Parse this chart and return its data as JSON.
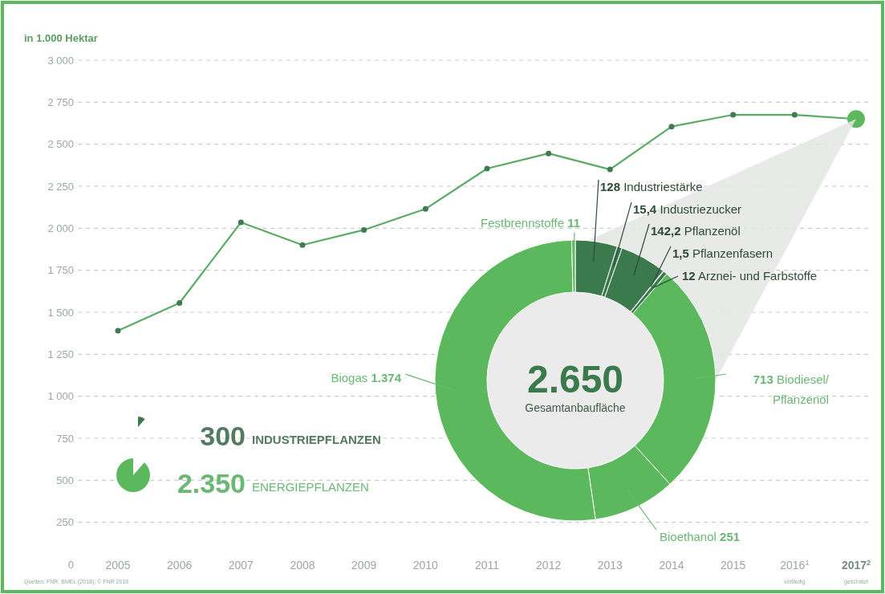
{
  "chart_data": [
    {
      "type": "line",
      "ylabel": "in 1.000 Hektar",
      "categories": [
        "2005",
        "2006",
        "2007",
        "2008",
        "2009",
        "2010",
        "2011",
        "2012",
        "2013",
        "2014",
        "2015",
        "2016$^{1}$",
        "2017$^{2}$"
      ],
      "values": [
        1390,
        1555,
        2035,
        1900,
        1990,
        2115,
        2355,
        2445,
        2350,
        2605,
        2675,
        2675,
        2650
      ],
      "color": "#5aac64",
      "marker": "circle",
      "grid": "y",
      "ylim": [
        0,
        3000
      ],
      "yticks": [
        0,
        {
          "value": 250,
          "label": "250"
        },
        {
          "value": 500,
          "label": "500"
        },
        {
          "value": 750,
          "label": "750"
        },
        {
          "value": 1000,
          "label": "1 000"
        },
        {
          "value": 1250,
          "label": "1 250"
        },
        {
          "value": 1500,
          "label": "1 500"
        },
        {
          "value": 1750,
          "label": "1 750"
        },
        {
          "value": 2000,
          "label": "2 000"
        },
        {
          "value": 2250,
          "label": "2 250"
        },
        {
          "value": 2500,
          "label": "2 500"
        },
        {
          "value": 2750,
          "label": "2 750"
        },
        {
          "value": 3000,
          "label": "3 000"
        }
      ],
      "annotations": [
        "vorläufig",
        "geschätzt",
        "Quellen: FNR, BMEL (2018); © FNR 2018"
      ]
    },
    {
      "type": "donut",
      "categories": [
        "Industriestärke",
        "Industriezucker",
        "Pflanzenöl",
        "Pflanzenfasern",
        "Arznei- und Farbstoffe",
        "Biodiesel/Pflanzenöl",
        "Bioethanol",
        "Biogas",
        "Festbrennstoffe"
      ],
      "values": [
        128,
        15.4,
        142.2,
        1.5,
        12,
        713,
        251,
        1374,
        11
      ],
      "value_labels": [
        "128",
        "15,4",
        "142,2",
        "1,5",
        "12",
        "713",
        "251",
        "1.374",
        "11"
      ],
      "colors": [
        "#3b7a4c",
        "#3b7a4c",
        "#3b7a4c",
        "#3b7a4c",
        "#3b7a4c",
        "#5cb85c",
        "#5cb85c",
        "#5cb85c",
        "#5cb85c"
      ],
      "annotations": [
        "2.650",
        "Gesamtanbaufläche",
        "300",
        "INDUSTRIEPFLANZEN",
        "2.350",
        "ENERGIEPFLANZEN"
      ]
    }
  ]
}
